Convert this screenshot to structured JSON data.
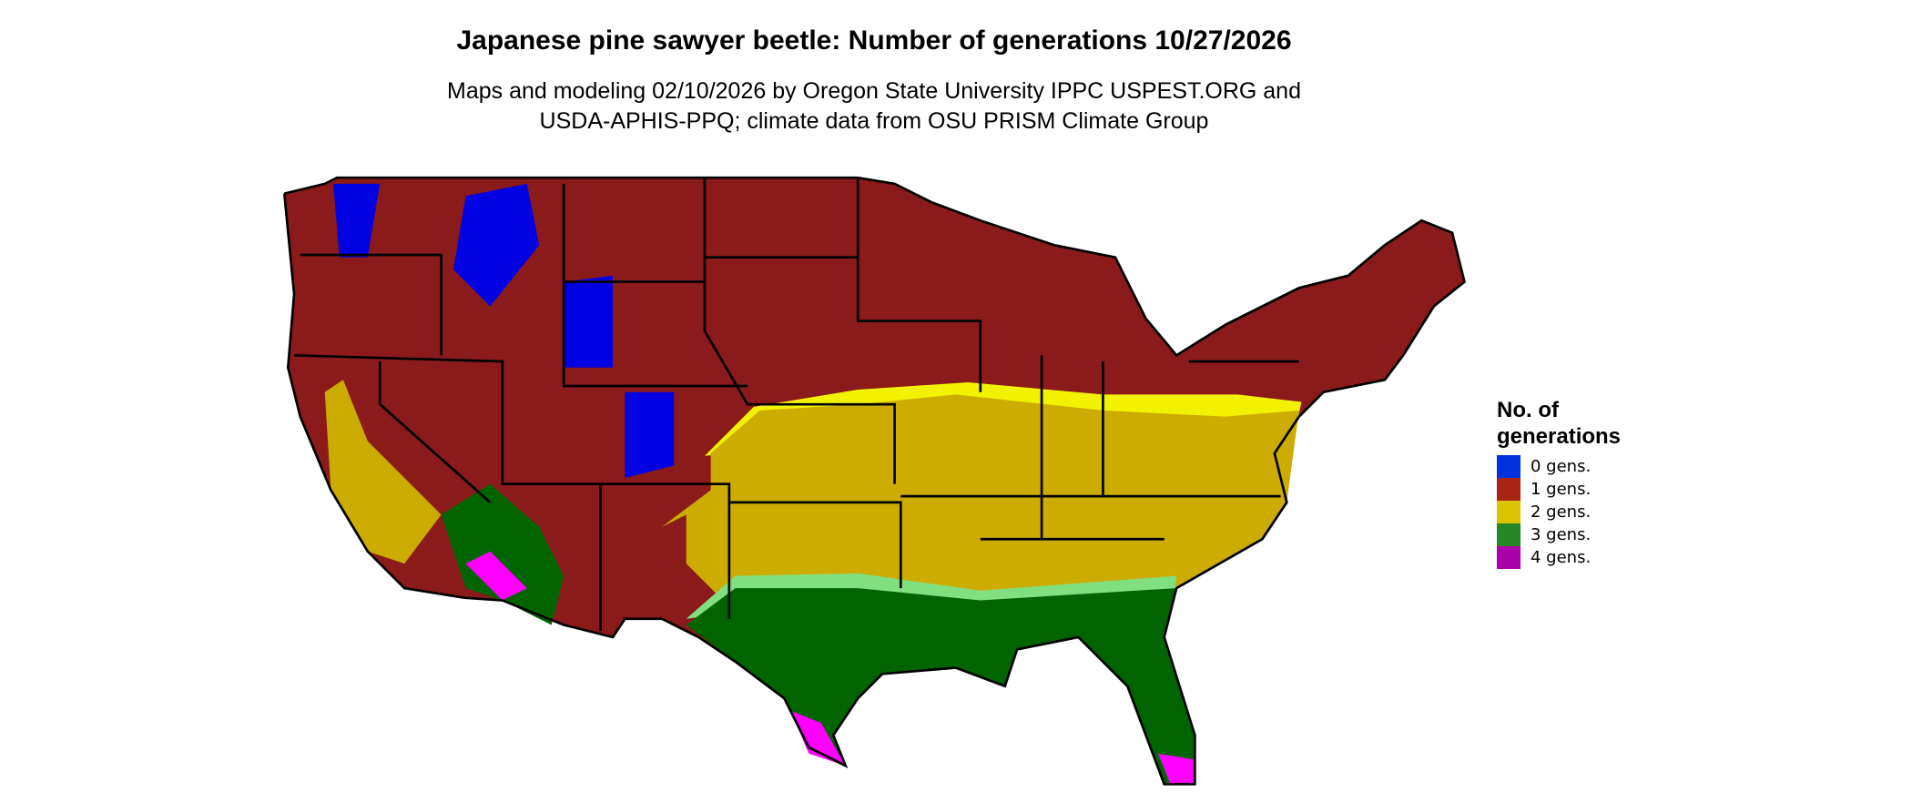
{
  "title": "Japanese pine sawyer beetle: Number of generations 10/27/2026",
  "subtitle_line1": "Maps and modeling 02/10/2026 by Oregon State University IPPC USPEST.ORG and",
  "subtitle_line2": "USDA-APHIS-PPQ; climate data from OSU PRISM Climate Group",
  "legend": {
    "title_line1": "No. of",
    "title_line2": "generations",
    "items": [
      {
        "label": "0 gens.",
        "color": "#0033dd"
      },
      {
        "label": "1 gens.",
        "color": "#a82516"
      },
      {
        "label": "2 gens.",
        "color": "#dcc300"
      },
      {
        "label": "3 gens.",
        "color": "#258727"
      },
      {
        "label": "4 gens.",
        "color": "#aa00aa"
      }
    ]
  },
  "map_colors": {
    "one_gen": "#8b1a1a",
    "two_gen": "#ccac00",
    "two_gen_fringe": "#f2f200",
    "three_gen": "#006400",
    "three_gen_fringe": "#80e080",
    "four_gen": "#ff00ff",
    "zero_gen": "#0000e0",
    "partial": "#ff4500"
  }
}
